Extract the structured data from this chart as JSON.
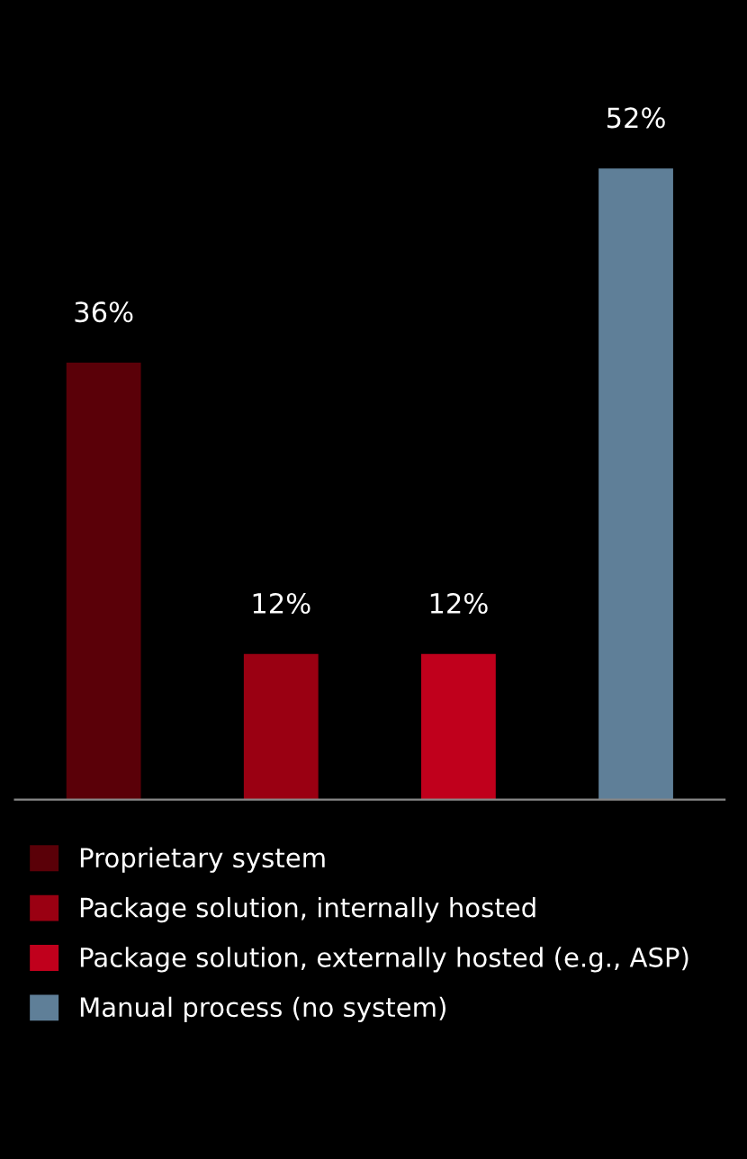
{
  "chart_data": {
    "type": "bar",
    "categories": [
      null,
      null,
      null,
      null
    ],
    "series": [
      {
        "name": "Proprietary system",
        "color": "#5a0008",
        "values": [
          36,
          null,
          null,
          null
        ],
        "value_labels": [
          "36%",
          null,
          null,
          null
        ]
      },
      {
        "name": "Package solution, internally hosted",
        "color": "#9a0012",
        "values": [
          null,
          12,
          null,
          null
        ],
        "value_labels": [
          null,
          "12%",
          null,
          null
        ]
      },
      {
        "name": "Package solution, externally hosted (e.g., ASP)",
        "color": "#c0001c",
        "values": [
          null,
          null,
          12,
          null
        ],
        "value_labels": [
          null,
          null,
          "12%",
          null
        ]
      },
      {
        "name": "Manual process (no system)",
        "color": "#5f7f98",
        "values": [
          null,
          null,
          null,
          52
        ],
        "value_labels": [
          null,
          null,
          null,
          "52%"
        ]
      }
    ],
    "stacked": true,
    "legend": "bottom",
    "grid": false
  }
}
